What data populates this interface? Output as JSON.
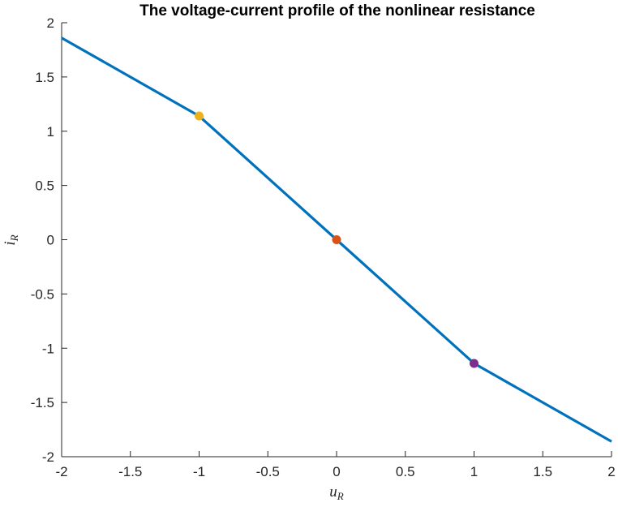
{
  "chart_data": {
    "type": "line",
    "title": "The voltage-current profile of the nonlinear resistance",
    "xlabel": {
      "main": "u",
      "sub": "R"
    },
    "ylabel": {
      "main": "i",
      "sub": "R"
    },
    "xlim": [
      -2,
      2
    ],
    "ylim": [
      -2,
      2
    ],
    "xticks": [
      "-2",
      "-1.5",
      "-1",
      "-0.5",
      "0",
      "0.5",
      "1",
      "1.5",
      "2"
    ],
    "yticks": [
      "-2",
      "-1.5",
      "-1",
      "-0.5",
      "0",
      "0.5",
      "1",
      "1.5",
      "2"
    ],
    "grid": false,
    "series": [
      {
        "color": "#0072BD",
        "x": [
          -2,
          -1,
          0,
          1,
          2
        ],
        "y": [
          1.86,
          1.14,
          0,
          -1.14,
          -1.86
        ]
      }
    ],
    "markers": [
      {
        "x": -1,
        "y": 1.14,
        "color": "#EDB120"
      },
      {
        "x": 0,
        "y": 0,
        "color": "#D95319"
      },
      {
        "x": 1,
        "y": -1.14,
        "color": "#7E2F8E"
      }
    ]
  }
}
